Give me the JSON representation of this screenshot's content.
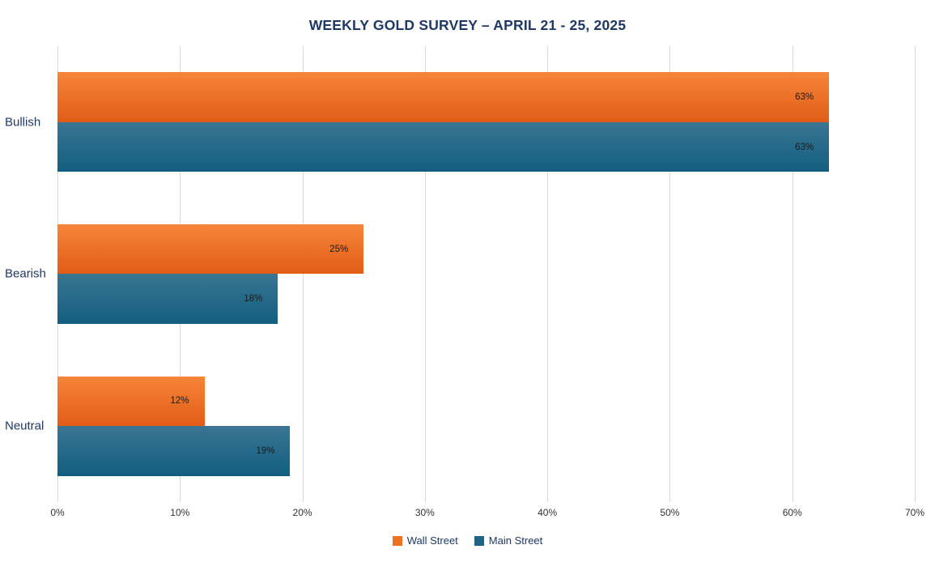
{
  "title": "WEEKLY GOLD SURVEY – APRIL 21 - 25, 2025",
  "chart_data": {
    "type": "bar",
    "orientation": "horizontal",
    "title": "WEEKLY GOLD SURVEY – APRIL 21 - 25, 2025",
    "categories": [
      "Bullish",
      "Bearish",
      "Neutral"
    ],
    "series": [
      {
        "name": "Wall Street",
        "values": [
          63,
          25,
          12
        ],
        "color_top": "#f6853a",
        "color_bottom": "#e25d16",
        "swatch": "#ee7220"
      },
      {
        "name": "Main Street",
        "values": [
          63,
          18,
          19
        ],
        "color_top": "#3a7593",
        "color_bottom": "#135e7f",
        "swatch": "#1c6584"
      }
    ],
    "value_suffix": "%",
    "xlim": [
      0,
      70
    ],
    "x_ticks": [
      "0%",
      "10%",
      "20%",
      "30%",
      "40%",
      "50%",
      "60%",
      "70%"
    ],
    "grid": true,
    "legend_position": "bottom"
  },
  "colors": {
    "title_text": "#1f3864",
    "category_label": "#1f3864",
    "grid_line": "#d9d9d9",
    "tick_label": "#333333",
    "bar_value_label": "#1a1a1a",
    "background": "#ffffff"
  }
}
